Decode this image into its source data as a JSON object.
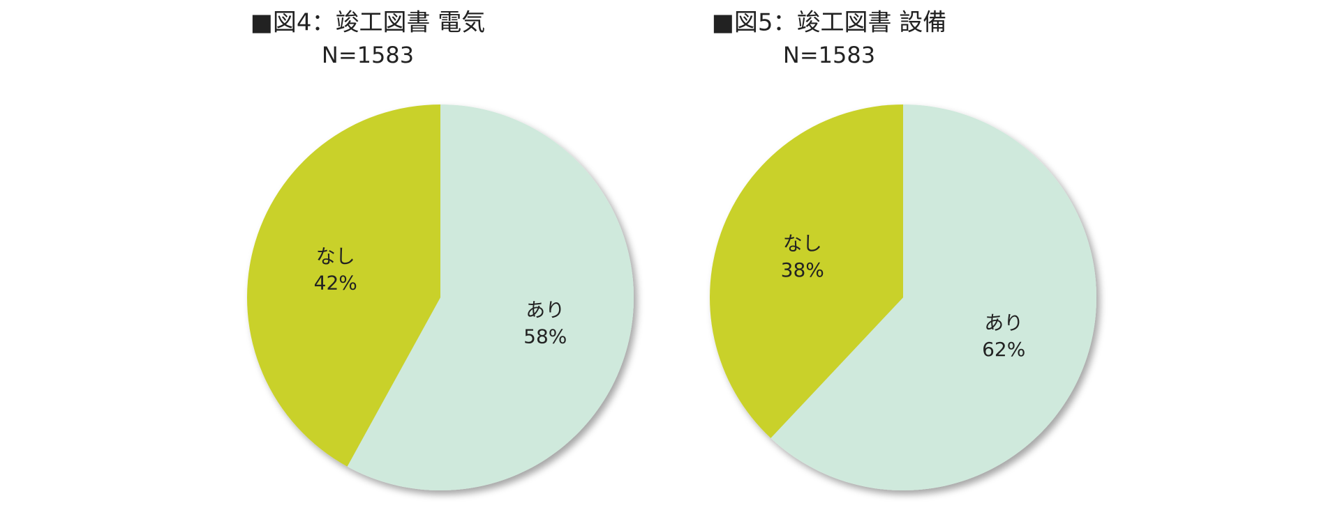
{
  "chart_data": [
    {
      "type": "pie",
      "title": "■図4：竣工図書 電気",
      "subtitle": "N=1583",
      "categories": [
        "あり",
        "なし"
      ],
      "values": [
        58,
        42
      ],
      "value_labels": [
        "58%",
        "42%"
      ],
      "colors": [
        "#cfe9dc",
        "#c9d12a"
      ]
    },
    {
      "type": "pie",
      "title": "■図5：竣工図書 設備",
      "subtitle": "N=1583",
      "categories": [
        "あり",
        "なし"
      ],
      "values": [
        62,
        38
      ],
      "value_labels": [
        "62%",
        "38%"
      ],
      "colors": [
        "#cfe9dc",
        "#c9d12a"
      ]
    }
  ]
}
